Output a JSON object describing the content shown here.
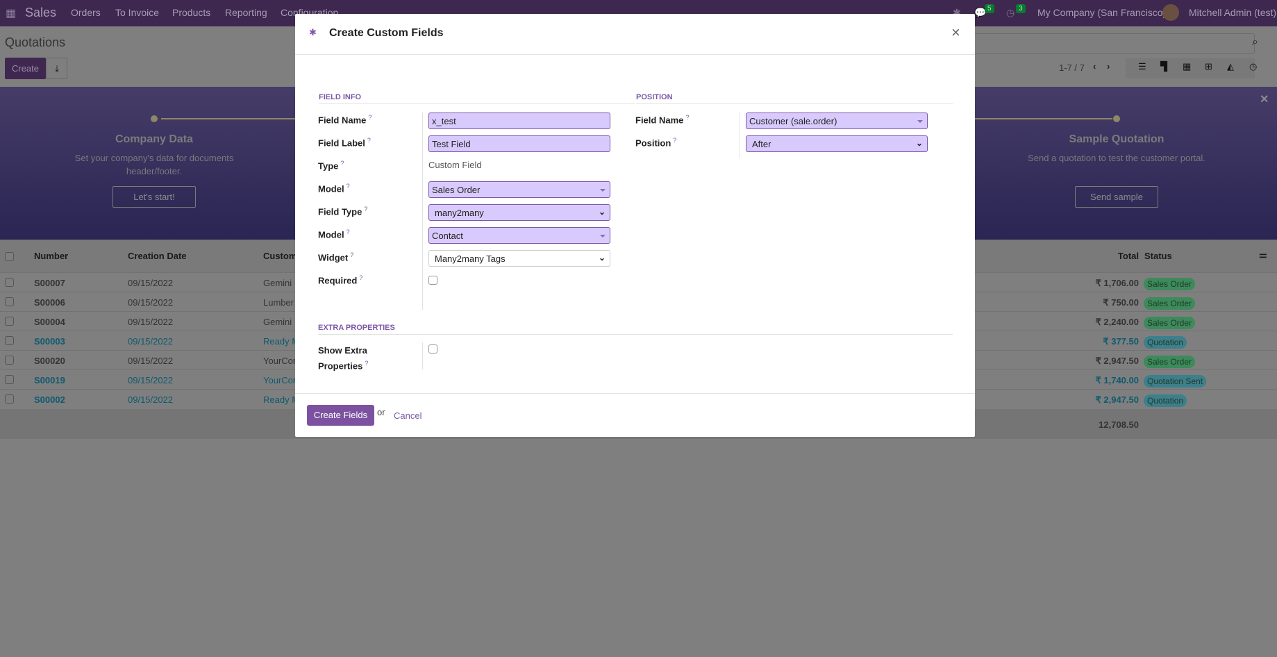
{
  "navbar": {
    "app": "Sales",
    "menu": [
      "Orders",
      "To Invoice",
      "Products",
      "Reporting",
      "Configuration"
    ],
    "messages_count": "5",
    "activities_count": "3",
    "company": "My Company (San Francisco)",
    "user": "Mitchell Admin (test)"
  },
  "control_panel": {
    "title": "Quotations",
    "create": "Create",
    "pager": "1-7 / 7"
  },
  "banner": {
    "steps": [
      {
        "title": "Company Data",
        "desc": "Set your company's data for documents header/footer.",
        "button": "Let's start!"
      },
      {
        "title": "Sample Quotation",
        "desc": "Send a quotation to test the customer portal.",
        "button": "Send sample"
      }
    ]
  },
  "table": {
    "headers": [
      "Number",
      "Creation Date",
      "Custom",
      "Total",
      "Status"
    ],
    "rows": [
      {
        "number": "S00007",
        "date": "09/15/2022",
        "customer": "Gemini I",
        "total": "₹ 1,706.00",
        "status": "Sales Order",
        "link": false
      },
      {
        "number": "S00006",
        "date": "09/15/2022",
        "customer": "Lumber",
        "total": "₹ 750.00",
        "status": "Sales Order",
        "link": false
      },
      {
        "number": "S00004",
        "date": "09/15/2022",
        "customer": "Gemini I",
        "total": "₹ 2,240.00",
        "status": "Sales Order",
        "link": false
      },
      {
        "number": "S00003",
        "date": "09/15/2022",
        "customer": "Ready M",
        "total": "₹ 377.50",
        "status": "Quotation",
        "link": true
      },
      {
        "number": "S00020",
        "date": "09/15/2022",
        "customer": "YourCor",
        "total": "₹ 2,947.50",
        "status": "Sales Order",
        "link": false
      },
      {
        "number": "S00019",
        "date": "09/15/2022",
        "customer": "YourCor",
        "total": "₹ 1,740.00",
        "status": "Quotation Sent",
        "link": true
      },
      {
        "number": "S00002",
        "date": "09/15/2022",
        "customer": "Ready M",
        "total": "₹ 2,947.50",
        "status": "Quotation",
        "link": true
      }
    ],
    "sum_total": "12,708.50"
  },
  "modal": {
    "title": "Create Custom Fields",
    "field_info": {
      "heading": "Field Info",
      "field_name_label": "Field Name",
      "field_name": "x_test",
      "field_label_label": "Field Label",
      "field_label": "Test Field",
      "type_label": "Type",
      "type": "Custom Field",
      "model_label": "Model",
      "model": "Sales Order",
      "field_type_label": "Field Type",
      "field_type": "many2many",
      "relation_model_label": "Model",
      "relation_model": "Contact",
      "widget_label": "Widget",
      "widget": "Many2many Tags",
      "required_label": "Required",
      "required": false
    },
    "position": {
      "heading": "Position",
      "field_name_label": "Field Name",
      "field_name": "Customer (sale.order)",
      "position_label": "Position",
      "position": "After"
    },
    "extra": {
      "heading": "Extra Properties",
      "show_extra_label_1": "Show Extra",
      "show_extra_label_2": "Properties",
      "show_extra": false
    },
    "footer": {
      "create": "Create Fields",
      "or": "or",
      "cancel": "Cancel"
    }
  },
  "colors": {
    "accent": "#7c57a8",
    "input_bg": "#d9cafd",
    "sales_order_badge": "#3d8a5a",
    "quotation_badge": "#3d7f8a"
  }
}
